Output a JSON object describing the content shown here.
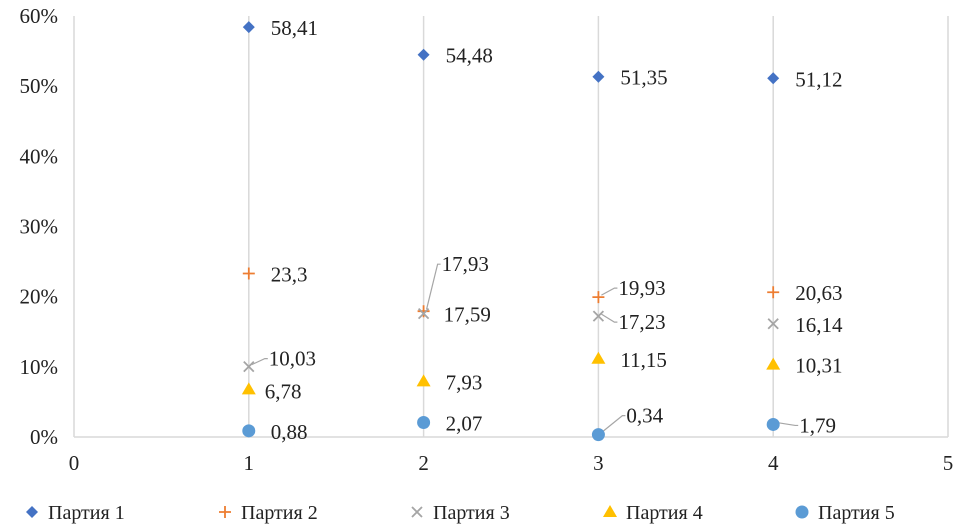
{
  "chart_data": {
    "type": "scatter",
    "title": "",
    "xlabel": "",
    "ylabel": "",
    "xlim": [
      0,
      5
    ],
    "ylim": [
      0,
      60
    ],
    "x_ticks": [
      0,
      1,
      2,
      3,
      4,
      5
    ],
    "y_ticks": [
      "0%",
      "10%",
      "20%",
      "30%",
      "40%",
      "50%",
      "60%"
    ],
    "grid": "vertical",
    "legend_position": "bottom",
    "series": [
      {
        "name": "Партия 1",
        "marker": "diamond",
        "color": "#4472C4",
        "x": [
          1,
          2,
          3,
          4
        ],
        "values": [
          58.41,
          54.48,
          51.35,
          51.12
        ],
        "labels": [
          "58,41",
          "54,48",
          "51,35",
          "51,12"
        ]
      },
      {
        "name": "Партия 2",
        "marker": "plus",
        "color": "#ED7D31",
        "x": [
          1,
          2,
          3,
          4
        ],
        "values": [
          23.3,
          17.93,
          19.93,
          20.63
        ],
        "labels": [
          "23,3",
          "17,93",
          "19,93",
          "20,63"
        ]
      },
      {
        "name": "Партия 3",
        "marker": "x",
        "color": "#A5A5A5",
        "x": [
          1,
          2,
          3,
          4
        ],
        "values": [
          10.03,
          17.59,
          17.23,
          16.14
        ],
        "labels": [
          "10,03",
          "17,59",
          "17,23",
          "16,14"
        ]
      },
      {
        "name": "Партия 4",
        "marker": "triangle",
        "color": "#FFC000",
        "x": [
          1,
          2,
          3,
          4
        ],
        "values": [
          6.78,
          7.93,
          11.15,
          10.31
        ],
        "labels": [
          "6,78",
          "7,93",
          "11,15",
          "10,31"
        ]
      },
      {
        "name": "Партия 5",
        "marker": "circle",
        "color": "#5B9BD5",
        "x": [
          1,
          2,
          3,
          4
        ],
        "values": [
          0.88,
          2.07,
          0.34,
          1.79
        ],
        "labels": [
          "0,88",
          "2,07",
          "0,34",
          "1,79"
        ]
      }
    ]
  }
}
